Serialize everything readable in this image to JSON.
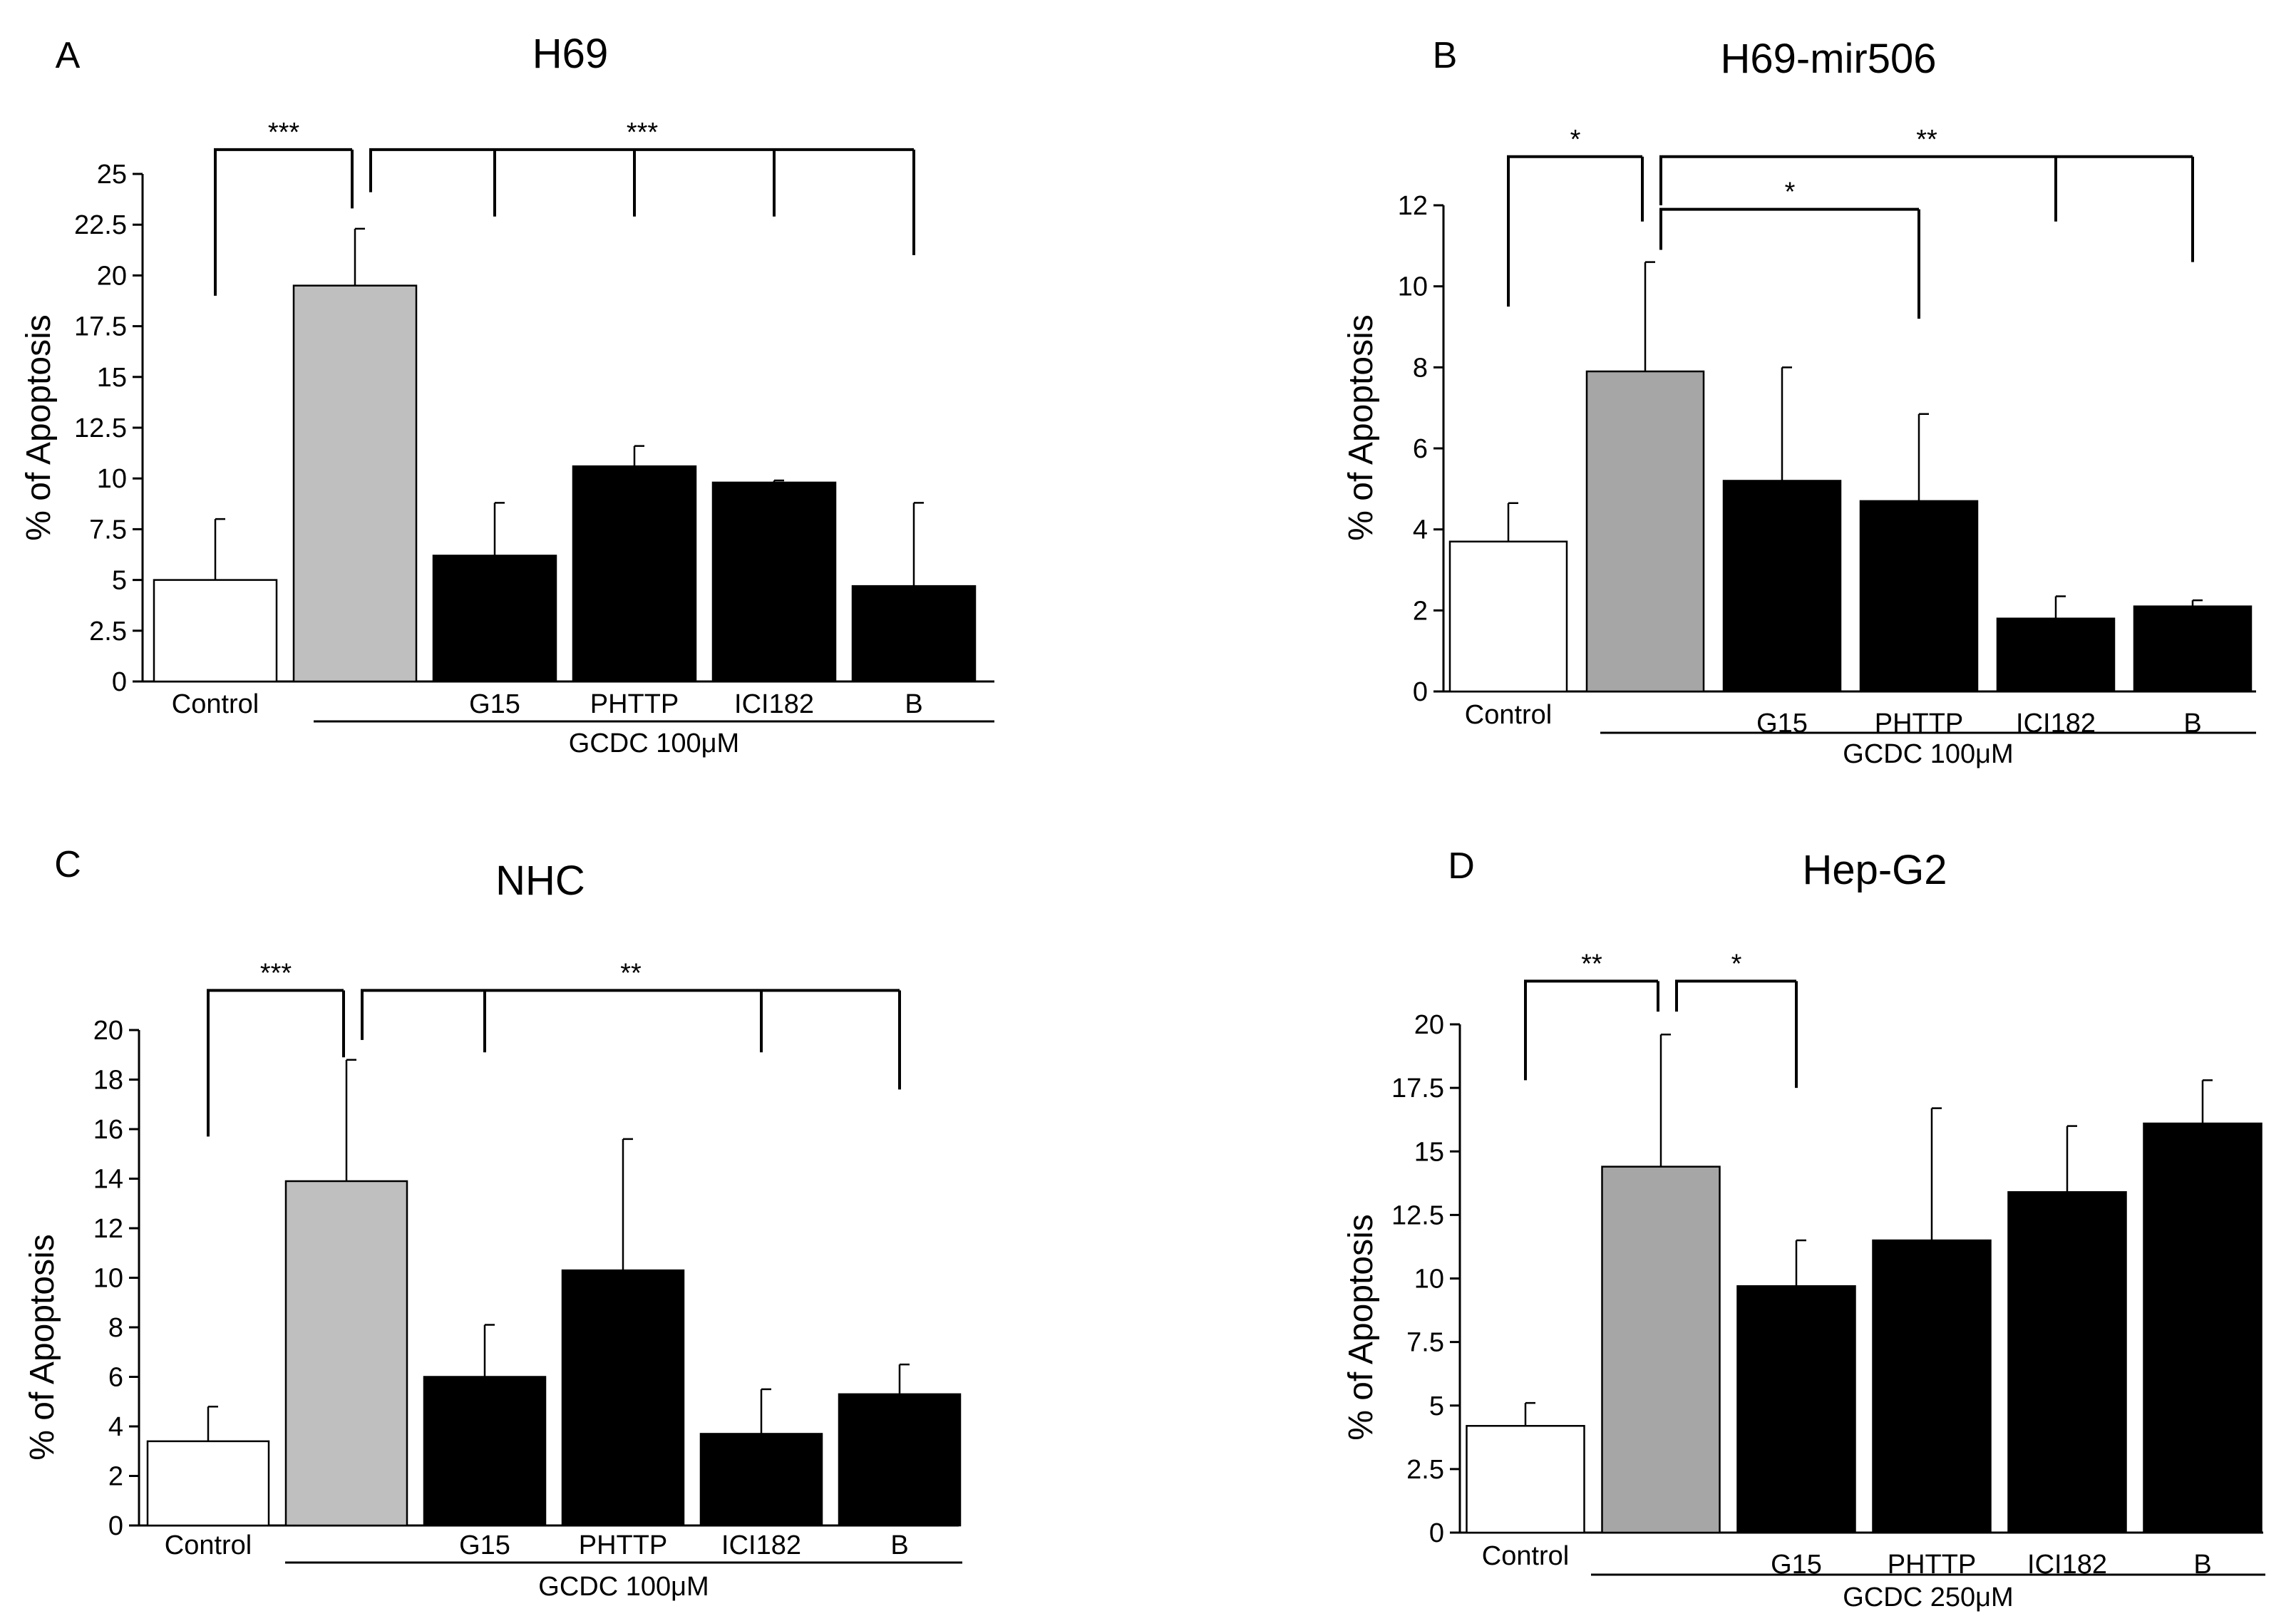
{
  "figure": {
    "chart_data": [
      {
        "type": "bar",
        "panel_label": "A",
        "title": "H69",
        "ylabel": "% of Apoptosis",
        "xlabel": "",
        "ylim": [
          0,
          25
        ],
        "yticks": [
          0,
          2.5,
          5,
          7.5,
          10,
          12.5,
          15,
          17.5,
          20,
          22.5,
          25
        ],
        "ytick_labels": [
          "0",
          "2.5",
          "5",
          "7.5",
          "10",
          "12.5",
          "15",
          "17.5",
          "20",
          "22.5",
          "25"
        ],
        "categories": [
          "Control",
          "",
          "G15",
          "PHTTP",
          "ICI182",
          "B"
        ],
        "values": [
          5.0,
          19.5,
          6.2,
          10.6,
          9.8,
          4.7
        ],
        "errors": [
          3.0,
          2.8,
          2.6,
          1.0,
          0.1,
          4.1
        ],
        "colors": [
          "#ffffff",
          "#bfbfbf",
          "#000000",
          "#000000",
          "#000000",
          "#000000"
        ],
        "treatment_label": "GCDC  100μM",
        "significance": [
          {
            "label": "***",
            "left": 0,
            "rights": [
              1
            ],
            "level": 26.2,
            "drop_left": 19.0,
            "drop_rights": [
              23.3
            ]
          },
          {
            "label": "***",
            "left": 1,
            "rights": [
              2,
              3,
              4,
              5
            ],
            "level": 26.2,
            "drop_left": 24.1,
            "drop_rights": [
              22.9,
              22.9,
              22.9,
              21.0
            ]
          }
        ]
      },
      {
        "type": "bar",
        "panel_label": "B",
        "title": "H69-mir506",
        "ylabel": "% of Apoptosis",
        "xlabel": "",
        "ylim": [
          0,
          12
        ],
        "yticks": [
          0,
          2,
          4,
          6,
          8,
          10,
          12
        ],
        "ytick_labels": [
          "0",
          "2",
          "4",
          "6",
          "8",
          "10",
          "12"
        ],
        "categories": [
          "Control",
          "",
          "G15",
          "PHTTP",
          "ICI182",
          "B"
        ],
        "values": [
          3.7,
          7.9,
          5.2,
          4.7,
          1.8,
          2.1
        ],
        "errors": [
          0.95,
          2.7,
          2.8,
          2.15,
          0.55,
          0.15
        ],
        "colors": [
          "#ffffff",
          "#a6a6a6",
          "#000000",
          "#000000",
          "#000000",
          "#000000"
        ],
        "treatment_label": "GCDC  100μM",
        "significance": [
          {
            "label": "*",
            "left": 0,
            "rights": [
              1
            ],
            "level": 13.2,
            "drop_left": 9.5,
            "drop_rights": [
              11.6
            ]
          },
          {
            "label": "**",
            "left": 1,
            "rights": [
              4,
              5
            ],
            "level": 13.2,
            "drop_left": 12.0,
            "drop_rights": [
              11.6,
              10.6
            ]
          },
          {
            "label": "*",
            "left": 1,
            "rights": [
              3
            ],
            "level": 11.9,
            "drop_left": 10.9,
            "drop_rights": [
              9.2
            ]
          }
        ]
      },
      {
        "type": "bar",
        "panel_label": "C",
        "title": "NHC",
        "ylabel": "% of Apoptosis",
        "xlabel": "",
        "ylim": [
          0,
          20
        ],
        "yticks": [
          0,
          2,
          4,
          6,
          8,
          10,
          12,
          14,
          16,
          18,
          20
        ],
        "ytick_labels": [
          "0",
          "2",
          "4",
          "6",
          "8",
          "10",
          "12",
          "14",
          "16",
          "18",
          "20"
        ],
        "categories": [
          "Control",
          "",
          "G15",
          "PHTTP",
          "ICI182",
          "B"
        ],
        "values": [
          3.4,
          13.9,
          6.0,
          10.3,
          3.7,
          5.3
        ],
        "errors": [
          1.4,
          4.9,
          2.1,
          5.3,
          1.8,
          1.2
        ],
        "colors": [
          "#ffffff",
          "#bfbfbf",
          "#000000",
          "#000000",
          "#000000",
          "#000000"
        ],
        "treatment_label": "GCDC  100μM",
        "significance": [
          {
            "label": "***",
            "left": 0,
            "rights": [
              1
            ],
            "level": 21.6,
            "drop_left": 15.7,
            "drop_rights": [
              18.9
            ]
          },
          {
            "label": "**",
            "left": 1,
            "rights": [
              2,
              4,
              5
            ],
            "level": 21.6,
            "drop_left": 19.6,
            "drop_rights": [
              19.1,
              19.1,
              17.6
            ]
          }
        ]
      },
      {
        "type": "bar",
        "panel_label": "D",
        "title": "Hep-G2",
        "ylabel": "% of Apoptosis",
        "xlabel": "",
        "ylim": [
          0,
          20
        ],
        "yticks": [
          0,
          2.5,
          5,
          7.5,
          10,
          12.5,
          15,
          17.5,
          20
        ],
        "ytick_labels": [
          "0",
          "2.5",
          "5",
          "7.5",
          "10",
          "12.5",
          "15",
          "17.5",
          "20"
        ],
        "categories": [
          "Control",
          "",
          "G15",
          "PHTTP",
          "ICI182",
          "B"
        ],
        "values": [
          4.2,
          14.4,
          9.7,
          11.5,
          13.4,
          16.1
        ],
        "errors": [
          0.9,
          5.2,
          1.8,
          5.2,
          2.6,
          1.7
        ],
        "colors": [
          "#ffffff",
          "#a6a6a6",
          "#000000",
          "#000000",
          "#000000",
          "#000000"
        ],
        "treatment_label": "GCDC  250μM",
        "significance": [
          {
            "label": "**",
            "left": 0,
            "rights": [
              1
            ],
            "level": 21.7,
            "drop_left": 17.8,
            "drop_rights": [
              20.5
            ]
          },
          {
            "label": "*",
            "left": 1,
            "rights": [
              2
            ],
            "level": 21.7,
            "drop_left": 20.5,
            "drop_rights": [
              17.5
            ]
          }
        ]
      }
    ]
  }
}
